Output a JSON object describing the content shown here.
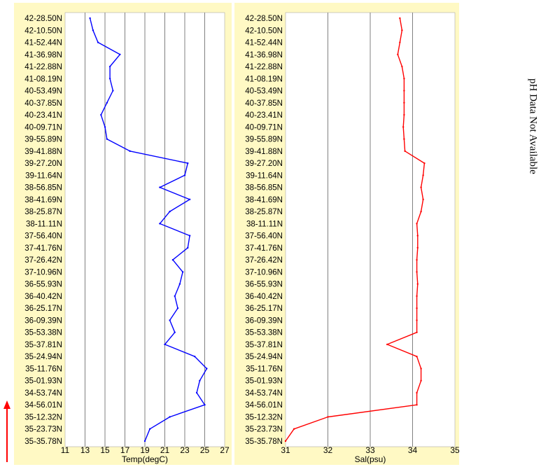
{
  "side_note": "pH Data Not Available",
  "colors": {
    "panel_bg": "#fff9c4",
    "plot_bg": "#ffffff",
    "grid": "#808080",
    "temp_line": "#0000ff",
    "sal_line": "#ff0000",
    "arrow": "#ff0000"
  },
  "chart_data": [
    {
      "type": "line",
      "xlabel": "Temp(degC)",
      "ylabel": "",
      "xlim": [
        11,
        27
      ],
      "xticks": [
        "11",
        "13",
        "15",
        "17",
        "19",
        "21",
        "23",
        "25",
        "27"
      ],
      "grid": true,
      "orientation": "vertical-profile",
      "categories": [
        "42-28.50N",
        "42-10.50N",
        "41-52.44N",
        "41-36.98N",
        "41-22.88N",
        "41-08.19N",
        "40-53.49N",
        "40-37.85N",
        "40-23.41N",
        "40-09.71N",
        "39-55.89N",
        "39-41.88N",
        "39-27.20N",
        "39-11.64N",
        "38-56.85N",
        "38-41.69N",
        "38-25.87N",
        "38-11.11N",
        "37-56.40N",
        "37-41.76N",
        "37-26.42N",
        "37-10.96N",
        "36-55.93N",
        "36-40.42N",
        "36-25.17N",
        "36-09.39N",
        "35-53.38N",
        "35-37.81N",
        "35-24.94N",
        "35-11.76N",
        "35-01.93N",
        "34-53.74N",
        "34-56.01N",
        "35-12.32N",
        "35-23.73N",
        "35-35.78N"
      ],
      "series": [
        {
          "values": [
            13.5,
            13.8,
            14.3,
            16.5,
            15.5,
            15.5,
            15.8,
            15.2,
            14.6,
            15.0,
            15.2,
            17.5,
            23.3,
            23.0,
            20.5,
            23.5,
            21.5,
            20.5,
            23.5,
            23.3,
            21.8,
            22.8,
            22.5,
            22.0,
            22.3,
            21.5,
            22.0,
            21.0,
            24.0,
            25.2,
            24.5,
            24.2,
            25.0,
            21.5,
            19.5,
            19.0
          ]
        }
      ]
    },
    {
      "type": "line",
      "xlabel": "Sal(psu)",
      "ylabel": "",
      "xlim": [
        31,
        35
      ],
      "xticks": [
        "31",
        "32",
        "33",
        "34",
        "35"
      ],
      "grid": true,
      "orientation": "vertical-profile",
      "categories": [
        "42-28.50N",
        "42-10.50N",
        "41-52.44N",
        "41-36.98N",
        "41-22.88N",
        "41-08.19N",
        "40-53.49N",
        "40-37.85N",
        "40-23.41N",
        "40-09.71N",
        "39-55.89N",
        "39-41.88N",
        "39-27.20N",
        "39-11.64N",
        "38-56.85N",
        "38-41.69N",
        "38-25.87N",
        "38-11.11N",
        "37-56.40N",
        "37-41.76N",
        "37-26.42N",
        "37-10.96N",
        "36-55.93N",
        "36-40.42N",
        "36-25.17N",
        "36-09.39N",
        "35-53.38N",
        "35-37.81N",
        "35-24.94N",
        "35-11.76N",
        "35-01.93N",
        "34-53.74N",
        "34-56.01N",
        "35-12.32N",
        "35-23.73N",
        "35-35.78N"
      ],
      "series": [
        {
          "values": [
            33.7,
            33.75,
            33.7,
            33.65,
            33.75,
            33.8,
            33.8,
            33.8,
            33.8,
            33.78,
            33.8,
            33.82,
            34.28,
            34.25,
            34.2,
            34.25,
            34.2,
            34.1,
            34.12,
            34.12,
            34.1,
            34.1,
            34.12,
            34.1,
            34.1,
            34.1,
            34.1,
            33.4,
            34.1,
            34.2,
            34.2,
            34.1,
            34.1,
            32.0,
            31.2,
            31.0
          ]
        }
      ]
    }
  ]
}
